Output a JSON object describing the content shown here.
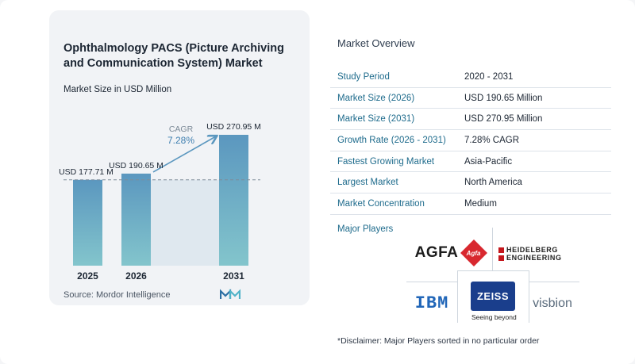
{
  "chart_data": {
    "type": "bar",
    "title": "Ophthalmology PACS (Picture Archiving and Communication System) Market",
    "subtitle": "Market Size in USD Million",
    "categories": [
      "2025",
      "2026",
      "2031"
    ],
    "values": [
      177.71,
      190.65,
      270.95
    ],
    "data_labels": [
      "USD 177.71 M",
      "USD 190.65 M",
      "USD 270.95 M"
    ],
    "cagr_label": "CAGR",
    "cagr_value": "7.28%",
    "ylim": [
      0,
      300
    ],
    "grid": false,
    "bar_color_top": "#5b97bf",
    "bar_color_bottom": "#83c5cc",
    "reference_line_color": "#7f8c99",
    "arrow_color": "#5b97bf"
  },
  "source": "Source:  Mordor Intelligence",
  "overview": {
    "title": "Market Overview",
    "rows": [
      {
        "key": "Study Period",
        "value": "2020 - 2031"
      },
      {
        "key": "Market Size (2026)",
        "value": "USD 190.65 Million"
      },
      {
        "key": "Market Size (2031)",
        "value": "USD 270.95 Million"
      },
      {
        "key": "Growth Rate (2026 - 2031)",
        "value": "7.28% CAGR"
      },
      {
        "key": "Fastest Growing Market",
        "value": "Asia-Pacific"
      },
      {
        "key": "Largest Market",
        "value": "North America"
      },
      {
        "key": "Market Concentration",
        "value": "Medium"
      }
    ],
    "major_players_label": "Major Players",
    "disclaimer": "*Disclaimer: Major Players sorted in no particular order"
  },
  "players": {
    "agfa": "AGFA",
    "agfa_mark": "Agfa",
    "heidelberg_line1": "HEIDELBERG",
    "heidelberg_line2": "ENGINEERING",
    "ibm": "IBM",
    "zeiss": "ZEISS",
    "zeiss_tagline": "Seeing beyond",
    "visbion": "visbion"
  }
}
